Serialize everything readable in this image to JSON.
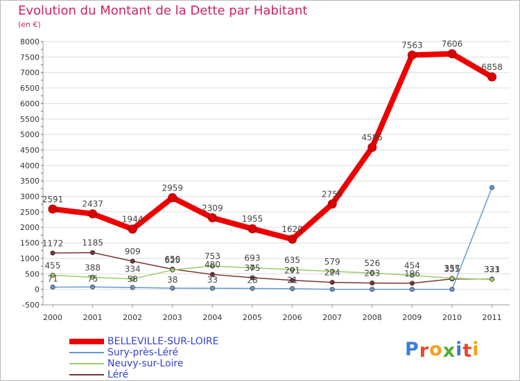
{
  "title": "Evolution du Montant de la Dette par Habitant",
  "unit": "(en €)",
  "logo": {
    "letters": [
      "P",
      "r",
      "o",
      "x",
      "i",
      "t",
      "i"
    ],
    "colors": [
      "#3a7dd8",
      "#e8462a",
      "#f2a21b",
      "#4fb02f",
      "#3a7dd8",
      "#e8462a",
      "#f2a21b"
    ]
  },
  "chart_data": {
    "type": "line",
    "title": "Evolution du Montant de la Dette par Habitant",
    "ylabel": "(en €)",
    "xlabel": "",
    "x": [
      "2000",
      "2001",
      "2002",
      "2003",
      "2004",
      "2005",
      "2006",
      "2007",
      "2008",
      "2009",
      "2010",
      "2011"
    ],
    "ylim": [
      -500,
      8000
    ],
    "yticks": [
      -500,
      0,
      500,
      1000,
      1500,
      2000,
      2500,
      3000,
      3500,
      4000,
      4500,
      5000,
      5500,
      6000,
      6500,
      7000,
      7500,
      8000
    ],
    "grid": true,
    "legend_position": "bottom-left",
    "series": [
      {
        "name": "BELLEVILLE-SUR-LOIRE",
        "color": "#ee0000",
        "emphasis": true,
        "values": [
          2591,
          2437,
          1944,
          2959,
          2309,
          1955,
          1620,
          2755,
          4585,
          7563,
          7606,
          6858
        ]
      },
      {
        "name": "Sury-près-Léré",
        "color": "#6699cc",
        "emphasis": false,
        "values": [
          71,
          75,
          58,
          38,
          33,
          28,
          21,
          0,
          0,
          0,
          0,
          3286
        ]
      },
      {
        "name": "Neuvy-sur-Loire",
        "color": "#99cc66",
        "emphasis": false,
        "values": [
          455,
          388,
          334,
          625,
          753,
          693,
          635,
          579,
          526,
          454,
          357,
          323
        ]
      },
      {
        "name": "Léré",
        "color": "#773333",
        "emphasis": false,
        "values": [
          1172,
          1185,
          909,
          650,
          480,
          375,
          291,
          224,
          203,
          196,
          335,
          331
        ]
      }
    ],
    "data_labels": [
      [
        "2591",
        "2437",
        "1944",
        "2959",
        "2309",
        "1955",
        "1620",
        "2755",
        "4585",
        "7563",
        "7606",
        "6858"
      ],
      [
        "71",
        "75",
        "58",
        "38",
        "33",
        "28",
        "21",
        "",
        "",
        "",
        "",
        ""
      ],
      [
        "455",
        "388",
        "334",
        "625",
        "753",
        "693",
        "635",
        "579",
        "526",
        "454",
        "357",
        "323"
      ],
      [
        "1172",
        "1185",
        "909",
        "650",
        "480",
        "375",
        "291",
        "224",
        "203",
        "196",
        "335",
        "331"
      ]
    ]
  }
}
